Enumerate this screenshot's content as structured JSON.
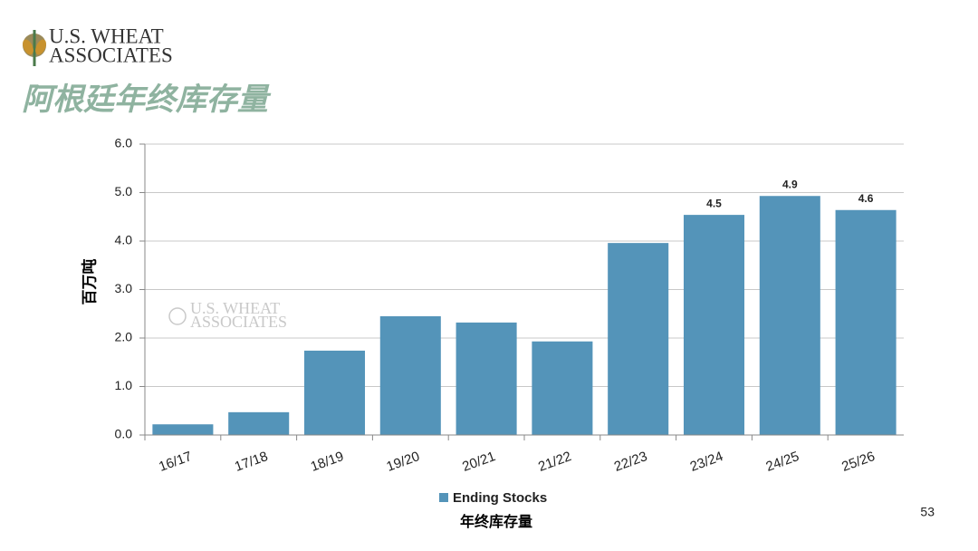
{
  "header": {
    "logo_line1": "U.S. WHEAT",
    "logo_line2": "ASSOCIATES",
    "title": "阿根廷年终库存量"
  },
  "chart_data": {
    "type": "bar",
    "categories": [
      "16/17",
      "17/18",
      "18/19",
      "19/20",
      "20/21",
      "21/22",
      "22/23",
      "23/24",
      "24/25",
      "25/26"
    ],
    "series": [
      {
        "name": "Ending Stocks",
        "color": "#5494b9",
        "values": [
          0.22,
          0.47,
          1.74,
          2.45,
          2.32,
          1.93,
          3.96,
          4.54,
          4.93,
          4.64
        ],
        "value_labels": [
          null,
          null,
          null,
          null,
          null,
          null,
          null,
          "4.5",
          "4.9",
          "4.6"
        ]
      }
    ],
    "y_label": "百万吨",
    "x_label": "年终库存量",
    "ylim": [
      0,
      6
    ],
    "yticks": [
      {
        "value": 0,
        "label": "0.0"
      },
      {
        "value": 1,
        "label": "1.0"
      },
      {
        "value": 2,
        "label": "2.0"
      },
      {
        "value": 3,
        "label": "3.0"
      },
      {
        "value": 4,
        "label": "4.0"
      },
      {
        "value": 5,
        "label": "5.0"
      },
      {
        "value": 6,
        "label": "6.0"
      }
    ],
    "grid": true,
    "legend": "bottom",
    "watermark": [
      "U.S. WHEAT",
      "ASSOCIATES"
    ]
  },
  "page_number": "53"
}
